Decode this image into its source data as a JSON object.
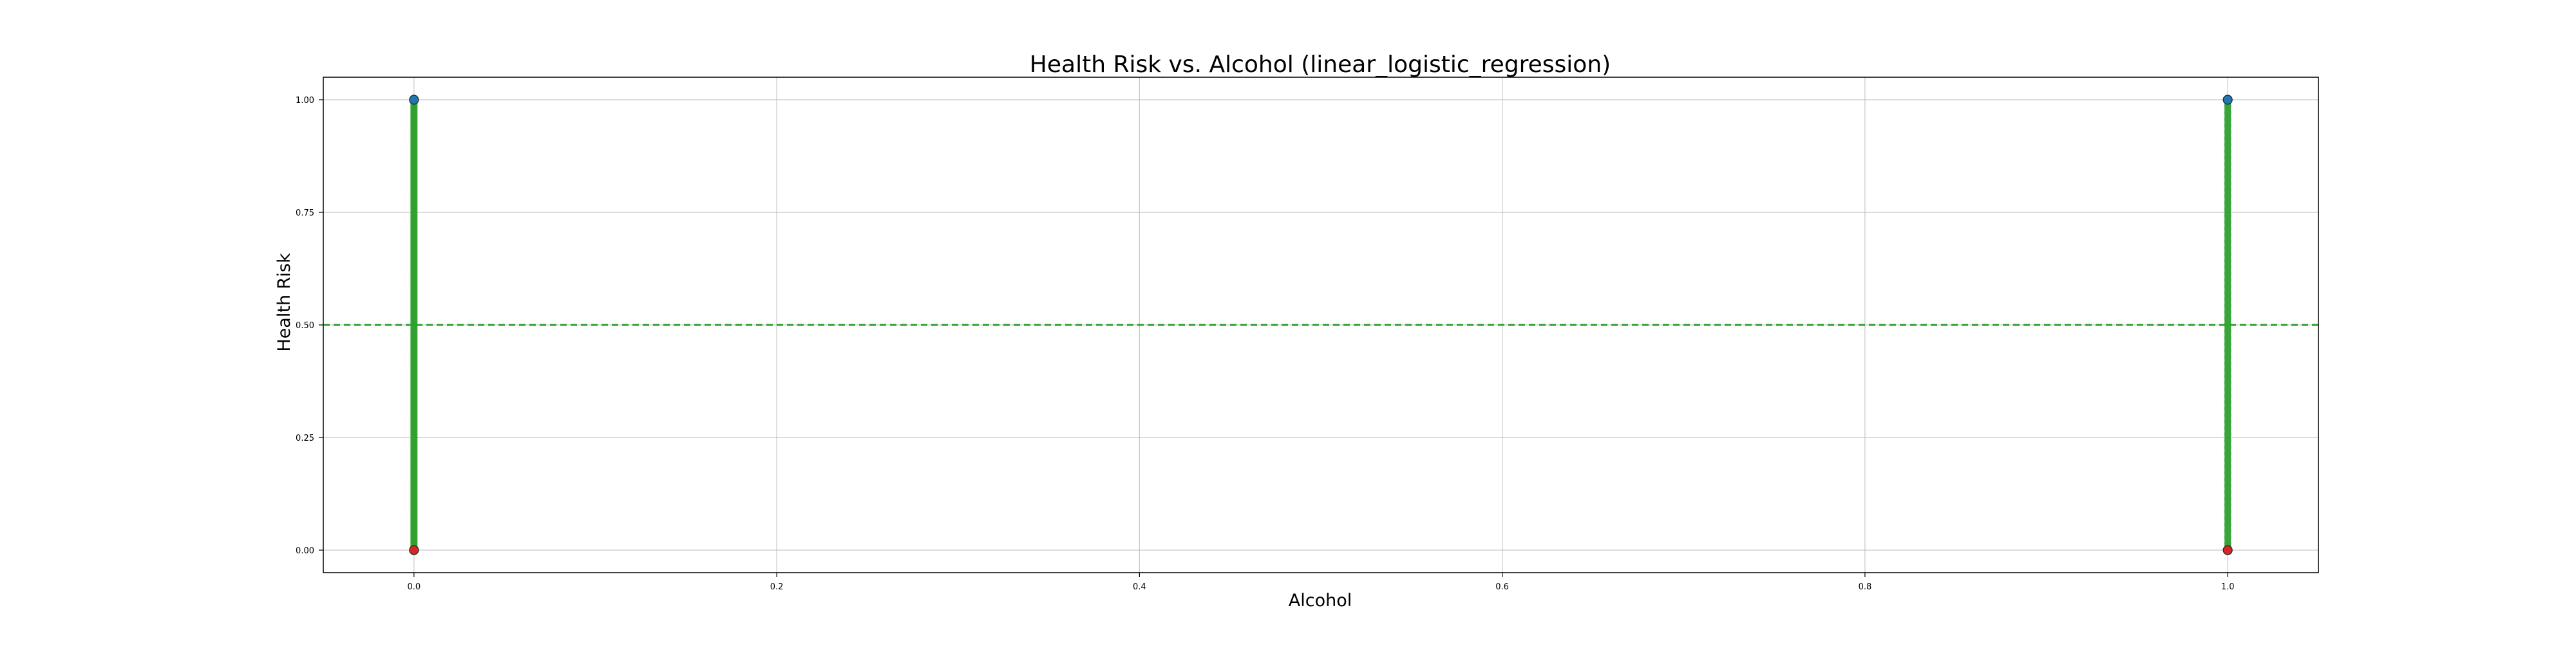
{
  "chart_data": {
    "type": "scatter",
    "title": "Health Risk vs. Alcohol (linear_logistic_regression)",
    "xlabel": "Alcohol",
    "ylabel": "Health Risk",
    "xlim": [
      -0.05,
      1.05
    ],
    "ylim": [
      -0.05,
      1.05
    ],
    "xticks": [
      0.0,
      0.2,
      0.4,
      0.6,
      0.8,
      1.0
    ],
    "xtick_labels": [
      "0.0",
      "0.2",
      "0.4",
      "0.6",
      "0.8",
      "1.0"
    ],
    "yticks": [
      0.0,
      0.25,
      0.5,
      0.75,
      1.0
    ],
    "ytick_labels": [
      "0.00",
      "0.25",
      "0.50",
      "0.75",
      "1.00"
    ],
    "grid": true,
    "threshold": {
      "y": 0.5,
      "color": "#2ca02c",
      "style": "dashed"
    },
    "series": [
      {
        "kind": "actual",
        "color": "#1f77b4",
        "points": [
          {
            "x": 0.0,
            "y": 1.0
          },
          {
            "x": 1.0,
            "y": 1.0
          }
        ]
      },
      {
        "kind": "actual",
        "color": "#d62728",
        "points": [
          {
            "x": 0.0,
            "y": 0.0
          },
          {
            "x": 1.0,
            "y": 0.0
          }
        ]
      },
      {
        "kind": "predicted",
        "color": "#2ca02c",
        "x_values": [
          0.0,
          1.0
        ],
        "y_range": [
          0.0,
          1.0
        ]
      }
    ]
  }
}
